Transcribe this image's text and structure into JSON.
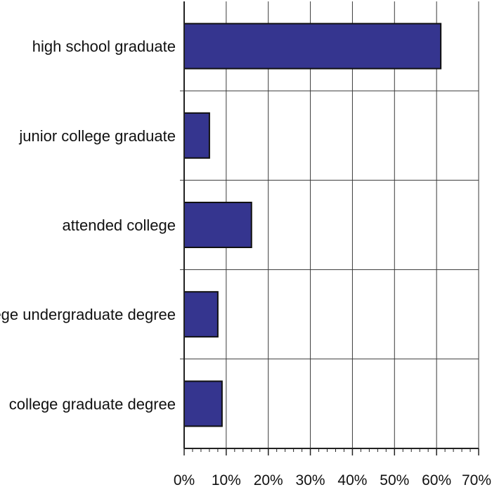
{
  "chart_data": {
    "type": "bar",
    "orientation": "horizontal",
    "categories": [
      "high school graduate",
      "junior college graduate",
      "attended college",
      "college undergraduate degree",
      "college graduate degree"
    ],
    "values": [
      61,
      6,
      16,
      8,
      9
    ],
    "xlim": [
      0,
      70
    ],
    "xticks": [
      0,
      10,
      20,
      30,
      40,
      50,
      60,
      70
    ],
    "xtick_labels": [
      "0%",
      "10%",
      "20%",
      "30%",
      "40%",
      "50%",
      "60%",
      "70%"
    ],
    "grid": true,
    "bar_color": "#35358f",
    "title": "",
    "xlabel": "",
    "ylabel": ""
  }
}
